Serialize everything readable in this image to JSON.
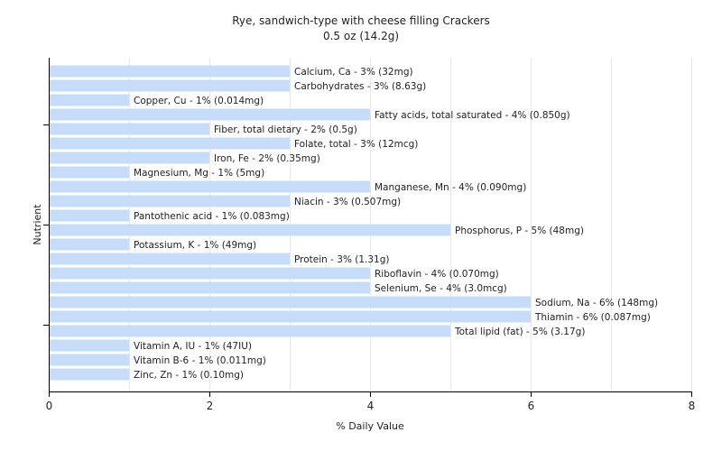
{
  "chart_data": {
    "type": "bar",
    "orientation": "horizontal",
    "title": "Rye, sandwich-type with cheese filling Crackers",
    "subtitle": "0.5 oz (14.2g)",
    "xlabel": "% Daily Value",
    "ylabel": "Nutrient",
    "xlim": [
      0,
      8
    ],
    "xticks": [
      0,
      2,
      4,
      6,
      8
    ],
    "grid": true,
    "bar_color": "#c6dcf8",
    "categories": [
      "Calcium, Ca",
      "Carbohydrates",
      "Copper, Cu",
      "Fatty acids, total saturated",
      "Fiber, total dietary",
      "Folate, total",
      "Iron, Fe",
      "Magnesium, Mg",
      "Manganese, Mn",
      "Niacin",
      "Pantothenic acid",
      "Phosphorus, P",
      "Potassium, K",
      "Protein",
      "Riboflavin",
      "Selenium, Se",
      "Sodium, Na",
      "Thiamin",
      "Total lipid (fat)",
      "Vitamin A, IU",
      "Vitamin B-6",
      "Zinc, Zn"
    ],
    "values": [
      3,
      3,
      1,
      4,
      2,
      3,
      2,
      1,
      4,
      3,
      1,
      5,
      1,
      3,
      4,
      4,
      6,
      6,
      5,
      1,
      1,
      1
    ],
    "labels": [
      "Calcium, Ca - 3% (32mg)",
      "Carbohydrates - 3% (8.63g)",
      "Copper, Cu - 1% (0.014mg)",
      "Fatty acids, total saturated - 4% (0.850g)",
      "Fiber, total dietary - 2% (0.5g)",
      "Folate, total - 3% (12mcg)",
      "Iron, Fe - 2% (0.35mg)",
      "Magnesium, Mg - 1% (5mg)",
      "Manganese, Mn - 4% (0.090mg)",
      "Niacin - 3% (0.507mg)",
      "Pantothenic acid - 1% (0.083mg)",
      "Phosphorus, P - 5% (48mg)",
      "Potassium, K - 1% (49mg)",
      "Protein - 3% (1.31g)",
      "Riboflavin - 4% (0.070mg)",
      "Selenium, Se - 4% (3.0mcg)",
      "Sodium, Na - 6% (148mg)",
      "Thiamin - 6% (0.087mg)",
      "Total lipid (fat) - 5% (3.17g)",
      "Vitamin A, IU - 1% (47IU)",
      "Vitamin B-6 - 1% (0.011mg)",
      "Zinc, Zn - 1% (0.10mg)"
    ]
  }
}
